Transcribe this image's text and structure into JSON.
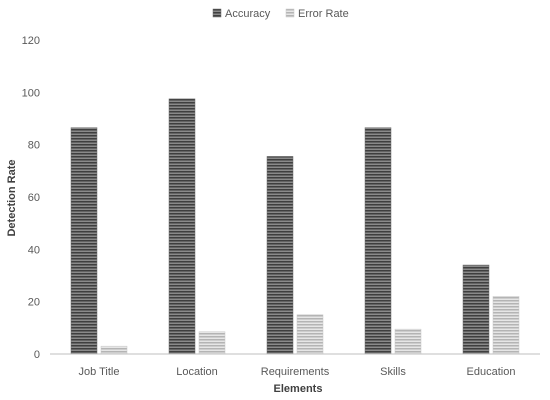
{
  "chart_data": {
    "type": "bar",
    "categories": [
      "Job Title",
      "Location",
      "Requirements",
      "Skills",
      "Education"
    ],
    "series": [
      {
        "name": "Accuracy",
        "values": [
          86.5,
          97.5,
          75.5,
          86.5,
          34.0
        ],
        "color": "#6b6b6b"
      },
      {
        "name": "Error Rate",
        "values": [
          3.0,
          8.5,
          15.0,
          9.5,
          22.0
        ],
        "color": "#c8c8c8"
      }
    ],
    "xlabel": "Elements",
    "ylabel": "Detection Rate",
    "ylim": [
      0,
      120
    ],
    "yticks": [
      0,
      20,
      40,
      60,
      80,
      100,
      120
    ],
    "grid": false,
    "legend_position": "top-center"
  }
}
